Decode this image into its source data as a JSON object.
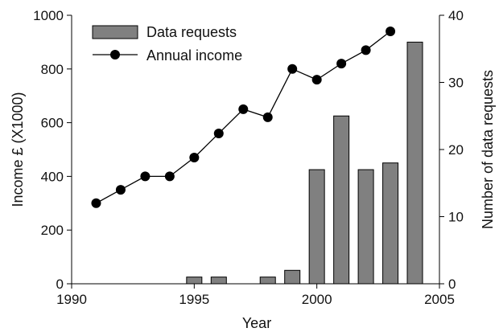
{
  "chart_data": {
    "type": "bar+line",
    "x_axis": {
      "label": "Year",
      "range": [
        1990,
        2005
      ],
      "ticks": [
        1990,
        1995,
        2000,
        2005
      ]
    },
    "y_left_axis": {
      "label": "Income £ (X1000)",
      "range": [
        0,
        1000
      ],
      "ticks": [
        0,
        200,
        400,
        600,
        800,
        1000
      ]
    },
    "y_right_axis": {
      "label": "Number of data requests",
      "range": [
        0,
        40
      ],
      "ticks": [
        0,
        10,
        20,
        30,
        40
      ]
    },
    "grid": false,
    "legend_position": "top-left",
    "series": [
      {
        "name": "Data requests",
        "type": "bar",
        "axis": "right",
        "color": "#808080",
        "x": [
          1995,
          1996,
          1998,
          1999,
          2000,
          2001,
          2002,
          2003,
          2004
        ],
        "values": [
          1,
          1,
          1,
          2,
          17,
          25,
          17,
          18,
          36
        ]
      },
      {
        "name": "Annual income",
        "type": "line",
        "axis": "left",
        "color": "#000000",
        "x": [
          1991,
          1992,
          1993,
          1994,
          1995,
          1996,
          1997,
          1998,
          1999,
          2000,
          2001,
          2002,
          2003
        ],
        "values": [
          300,
          350,
          400,
          400,
          470,
          560,
          650,
          620,
          800,
          760,
          820,
          870,
          940
        ]
      }
    ]
  }
}
